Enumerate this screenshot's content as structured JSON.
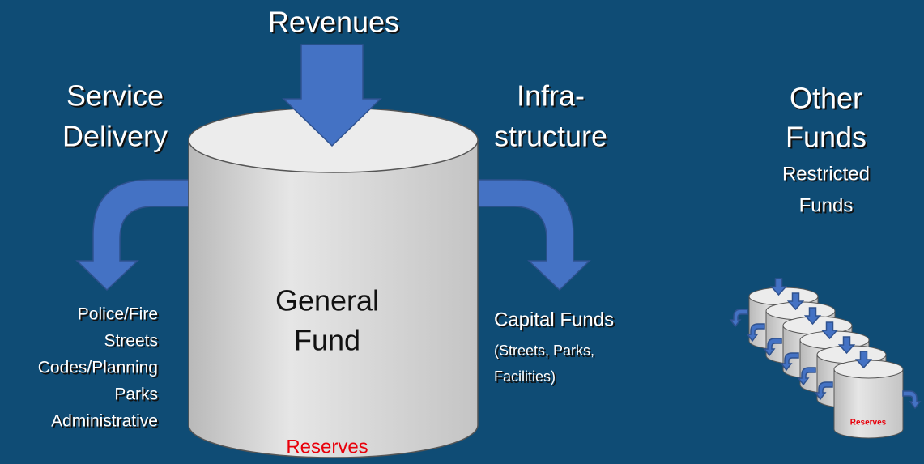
{
  "revenues": "Revenues",
  "service_delivery": [
    "Service",
    "Delivery"
  ],
  "infrastructure": [
    "Infra-",
    "structure"
  ],
  "other_funds": {
    "title": [
      "Other",
      "Funds"
    ],
    "subtitle": [
      "Restricted",
      "Funds"
    ],
    "reserves": "Reserves"
  },
  "general_fund": [
    "General",
    "Fund"
  ],
  "reserves": "Reserves",
  "service_items": [
    "Police/Fire",
    "Streets",
    "Codes/Planning",
    "Parks",
    "Administrative"
  ],
  "capital_funds": {
    "title": "Capital Funds",
    "details": [
      "(Streets, Parks,",
      "Facilities)"
    ]
  }
}
